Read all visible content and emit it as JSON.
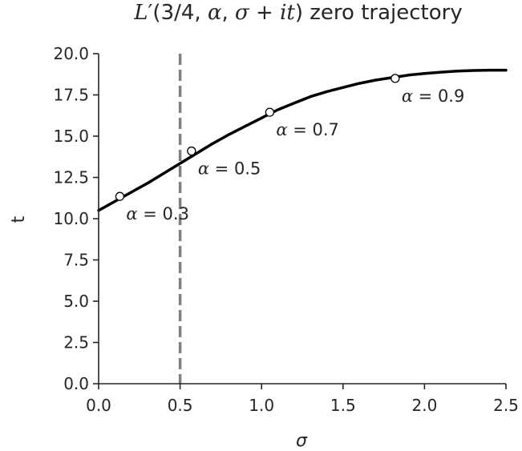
{
  "chart_data": {
    "type": "line",
    "title_parts": [
      "L",
      "′(3/4, ",
      "α",
      ", ",
      "σ",
      " + ",
      "it",
      ") zero trajectory"
    ],
    "xlabel": "σ",
    "ylabel": "t",
    "xlim": [
      0.0,
      2.5
    ],
    "ylim": [
      0.0,
      20.0
    ],
    "xticks": [
      0.0,
      0.5,
      1.0,
      1.5,
      2.0,
      2.5
    ],
    "xtick_labels": [
      "0.0",
      "0.5",
      "1.0",
      "1.5",
      "2.0",
      "2.5"
    ],
    "yticks": [
      0.0,
      2.5,
      5.0,
      7.5,
      10.0,
      12.5,
      15.0,
      17.5,
      20.0
    ],
    "ytick_labels": [
      "0.0",
      "2.5",
      "5.0",
      "7.5",
      "10.0",
      "12.5",
      "15.0",
      "17.5",
      "20.0"
    ],
    "grid": false,
    "series": [
      {
        "values": [
          [
            0.0,
            10.5
          ],
          [
            0.1,
            11.05
          ],
          [
            0.2,
            11.6
          ],
          [
            0.3,
            12.15
          ],
          [
            0.4,
            12.75
          ],
          [
            0.5,
            13.35
          ],
          [
            0.6,
            13.95
          ],
          [
            0.7,
            14.55
          ],
          [
            0.8,
            15.1
          ],
          [
            0.9,
            15.6
          ],
          [
            1.0,
            16.1
          ],
          [
            1.1,
            16.6
          ],
          [
            1.2,
            17.0
          ],
          [
            1.3,
            17.4
          ],
          [
            1.4,
            17.7
          ],
          [
            1.5,
            17.95
          ],
          [
            1.6,
            18.2
          ],
          [
            1.7,
            18.4
          ],
          [
            1.8,
            18.55
          ],
          [
            1.9,
            18.7
          ],
          [
            2.0,
            18.8
          ],
          [
            2.1,
            18.88
          ],
          [
            2.2,
            18.94
          ],
          [
            2.3,
            18.98
          ],
          [
            2.4,
            19.0
          ],
          [
            2.5,
            19.0
          ]
        ],
        "color": "#000000"
      }
    ],
    "reference_line": {
      "x": 0.5,
      "style": "dashed",
      "color": "#808080"
    },
    "markers": [
      {
        "label": "α = 0.3",
        "x": 0.13,
        "y": 11.35
      },
      {
        "label": "α = 0.5",
        "x": 0.57,
        "y": 14.1
      },
      {
        "label": "α = 0.7",
        "x": 1.05,
        "y": 16.45
      },
      {
        "label": "α = 0.9",
        "x": 1.82,
        "y": 18.5
      }
    ]
  }
}
